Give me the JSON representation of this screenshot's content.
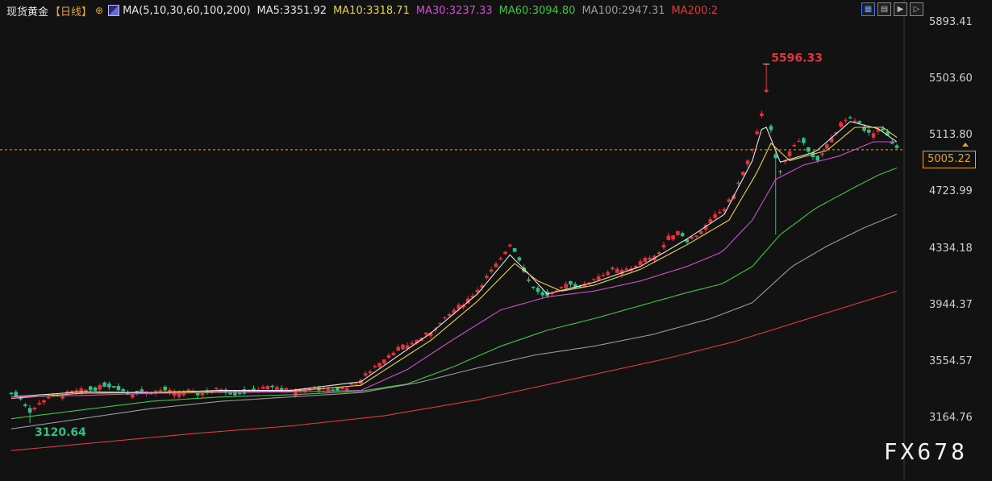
{
  "header": {
    "instrument": "现货黄金",
    "period": "【日线】",
    "ma_params": "MA(5,10,30,60,100,200)",
    "ma_values": [
      {
        "label": "MA5:3351.92",
        "color": "#e6e6e6"
      },
      {
        "label": "MA10:3318.71",
        "color": "#e6d34a"
      },
      {
        "label": "MA30:3237.33",
        "color": "#d14fd1"
      },
      {
        "label": "MA60:3094.80",
        "color": "#3ec83e"
      },
      {
        "label": "MA100:2947.31",
        "color": "#9a9a9a"
      },
      {
        "label": "MA200:2",
        "color": "#e03a3a"
      }
    ]
  },
  "toolbar": {
    "icons": [
      "grid-icon",
      "bar-layout-icon",
      "zoom-in-icon",
      "zoom-out-icon"
    ]
  },
  "current_price": "5005.22",
  "watermark": "FX678",
  "colors": {
    "background": "#121212",
    "up": "#e0343d",
    "down": "#2fbf7f",
    "accent": "#e3a03d"
  },
  "chart_data": {
    "type": "candlestick",
    "y_ticks": [
      "5893.41",
      "5503.60",
      "5113.80",
      "4723.99",
      "4334.18",
      "3944.37",
      "3554.57",
      "3164.76"
    ],
    "ylim": [
      3050,
      5950
    ],
    "current_price": 5005.22,
    "annotations": [
      {
        "label": "5596.33",
        "value": 5596.33,
        "kind": "high",
        "color": "#e0343d"
      },
      {
        "label": "3120.64",
        "value": 3120.64,
        "kind": "low",
        "color": "#2fbf7f"
      }
    ],
    "sessions": 205,
    "close_path": [
      [
        0,
        3320
      ],
      [
        4,
        3290
      ],
      [
        8,
        3200
      ],
      [
        11,
        3240
      ],
      [
        15,
        3300
      ],
      [
        20,
        3310
      ],
      [
        25,
        3330
      ],
      [
        30,
        3345
      ],
      [
        35,
        3350
      ],
      [
        40,
        3380
      ],
      [
        45,
        3370
      ],
      [
        50,
        3320
      ],
      [
        55,
        3340
      ],
      [
        60,
        3330
      ],
      [
        65,
        3350
      ],
      [
        70,
        3330
      ],
      [
        75,
        3345
      ],
      [
        80,
        3320
      ],
      [
        85,
        3340
      ],
      [
        90,
        3360
      ],
      [
        95,
        3320
      ],
      [
        100,
        3330
      ],
      [
        105,
        3350
      ],
      [
        110,
        3370
      ],
      [
        115,
        3360
      ],
      [
        120,
        3340
      ],
      [
        125,
        3355
      ],
      [
        130,
        3365
      ],
      [
        135,
        3345
      ],
      [
        140,
        3350
      ],
      [
        145,
        3380
      ],
      [
        150,
        3420
      ],
      [
        155,
        3500
      ],
      [
        160,
        3570
      ],
      [
        165,
        3630
      ],
      [
        170,
        3660
      ],
      [
        175,
        3700
      ],
      [
        180,
        3750
      ],
      [
        185,
        3820
      ],
      [
        190,
        3900
      ],
      [
        195,
        3960
      ],
      [
        200,
        4040
      ],
      [
        205,
        4150
      ],
      [
        210,
        4250
      ],
      [
        214,
        4360
      ],
      [
        218,
        4250
      ],
      [
        222,
        4100
      ],
      [
        226,
        4020
      ],
      [
        230,
        3990
      ],
      [
        234,
        4020
      ],
      [
        238,
        4090
      ],
      [
        242,
        4060
      ],
      [
        246,
        4070
      ],
      [
        250,
        4120
      ],
      [
        254,
        4150
      ],
      [
        258,
        4180
      ],
      [
        262,
        4170
      ],
      [
        266,
        4190
      ],
      [
        270,
        4230
      ],
      [
        274,
        4270
      ],
      [
        278,
        4300
      ],
      [
        282,
        4400
      ],
      [
        286,
        4450
      ],
      [
        290,
        4380
      ],
      [
        294,
        4420
      ],
      [
        298,
        4480
      ],
      [
        302,
        4550
      ],
      [
        306,
        4600
      ],
      [
        310,
        4700
      ],
      [
        314,
        4850
      ],
      [
        318,
        5000
      ],
      [
        321,
        5180
      ],
      [
        324,
        5430
      ],
      [
        327,
        4980
      ],
      [
        330,
        4850
      ],
      [
        333,
        4960
      ],
      [
        336,
        5050
      ],
      [
        339,
        5080
      ],
      [
        342,
        4980
      ],
      [
        345,
        4920
      ],
      [
        348,
        4990
      ],
      [
        351,
        5060
      ],
      [
        354,
        5120
      ],
      [
        357,
        5230
      ],
      [
        360,
        5210
      ],
      [
        363,
        5200
      ],
      [
        366,
        5130
      ],
      [
        369,
        5100
      ],
      [
        372,
        5160
      ],
      [
        375,
        5120
      ],
      [
        378,
        5050
      ],
      [
        380,
        5005
      ]
    ],
    "moving_averages": [
      {
        "name": "MA5",
        "color": "#e6e6e6",
        "points": [
          [
            0,
            3300
          ],
          [
            30,
            3335
          ],
          [
            60,
            3330
          ],
          [
            90,
            3345
          ],
          [
            120,
            3345
          ],
          [
            150,
            3405
          ],
          [
            180,
            3740
          ],
          [
            200,
            4010
          ],
          [
            214,
            4280
          ],
          [
            222,
            4150
          ],
          [
            230,
            4010
          ],
          [
            250,
            4090
          ],
          [
            270,
            4200
          ],
          [
            290,
            4390
          ],
          [
            306,
            4560
          ],
          [
            318,
            4930
          ],
          [
            323,
            5200
          ],
          [
            330,
            4920
          ],
          [
            345,
            4990
          ],
          [
            360,
            5200
          ],
          [
            372,
            5150
          ],
          [
            380,
            5060
          ]
        ]
      },
      {
        "name": "MA10",
        "color": "#e6d34a",
        "points": [
          [
            0,
            3290
          ],
          [
            30,
            3325
          ],
          [
            60,
            3330
          ],
          [
            90,
            3340
          ],
          [
            120,
            3340
          ],
          [
            150,
            3380
          ],
          [
            180,
            3690
          ],
          [
            200,
            3960
          ],
          [
            216,
            4220
          ],
          [
            226,
            4100
          ],
          [
            236,
            4030
          ],
          [
            250,
            4070
          ],
          [
            270,
            4180
          ],
          [
            290,
            4350
          ],
          [
            308,
            4520
          ],
          [
            320,
            4850
          ],
          [
            326,
            5050
          ],
          [
            334,
            4930
          ],
          [
            350,
            5000
          ],
          [
            362,
            5160
          ],
          [
            374,
            5160
          ],
          [
            380,
            5090
          ]
        ]
      },
      {
        "name": "MA30",
        "color": "#d14fd1",
        "points": [
          [
            0,
            3300
          ],
          [
            30,
            3310
          ],
          [
            60,
            3325
          ],
          [
            90,
            3330
          ],
          [
            120,
            3335
          ],
          [
            150,
            3345
          ],
          [
            170,
            3490
          ],
          [
            190,
            3700
          ],
          [
            210,
            3900
          ],
          [
            230,
            3990
          ],
          [
            250,
            4030
          ],
          [
            270,
            4100
          ],
          [
            290,
            4200
          ],
          [
            305,
            4300
          ],
          [
            318,
            4520
          ],
          [
            328,
            4800
          ],
          [
            340,
            4900
          ],
          [
            355,
            4960
          ],
          [
            370,
            5060
          ],
          [
            380,
            5060
          ]
        ]
      },
      {
        "name": "MA60",
        "color": "#3ec83e",
        "points": [
          [
            0,
            3150
          ],
          [
            30,
            3210
          ],
          [
            60,
            3270
          ],
          [
            90,
            3300
          ],
          [
            120,
            3315
          ],
          [
            150,
            3340
          ],
          [
            170,
            3390
          ],
          [
            190,
            3510
          ],
          [
            210,
            3650
          ],
          [
            230,
            3760
          ],
          [
            250,
            3840
          ],
          [
            270,
            3930
          ],
          [
            290,
            4020
          ],
          [
            305,
            4080
          ],
          [
            318,
            4200
          ],
          [
            330,
            4420
          ],
          [
            345,
            4600
          ],
          [
            360,
            4730
          ],
          [
            372,
            4830
          ],
          [
            380,
            4880
          ]
        ]
      },
      {
        "name": "MA100",
        "color": "#9a9a9a",
        "points": [
          [
            0,
            3080
          ],
          [
            30,
            3150
          ],
          [
            60,
            3220
          ],
          [
            90,
            3270
          ],
          [
            120,
            3300
          ],
          [
            150,
            3330
          ],
          [
            175,
            3400
          ],
          [
            200,
            3500
          ],
          [
            225,
            3590
          ],
          [
            250,
            3650
          ],
          [
            275,
            3730
          ],
          [
            300,
            3840
          ],
          [
            318,
            3950
          ],
          [
            335,
            4200
          ],
          [
            350,
            4340
          ],
          [
            365,
            4460
          ],
          [
            380,
            4560
          ]
        ]
      },
      {
        "name": "MA200",
        "color": "#e03a3a",
        "points": [
          [
            0,
            2930
          ],
          [
            40,
            2990
          ],
          [
            80,
            3050
          ],
          [
            120,
            3100
          ],
          [
            160,
            3170
          ],
          [
            200,
            3280
          ],
          [
            240,
            3420
          ],
          [
            280,
            3560
          ],
          [
            310,
            3680
          ],
          [
            340,
            3830
          ],
          [
            360,
            3930
          ],
          [
            380,
            4030
          ]
        ]
      }
    ]
  }
}
